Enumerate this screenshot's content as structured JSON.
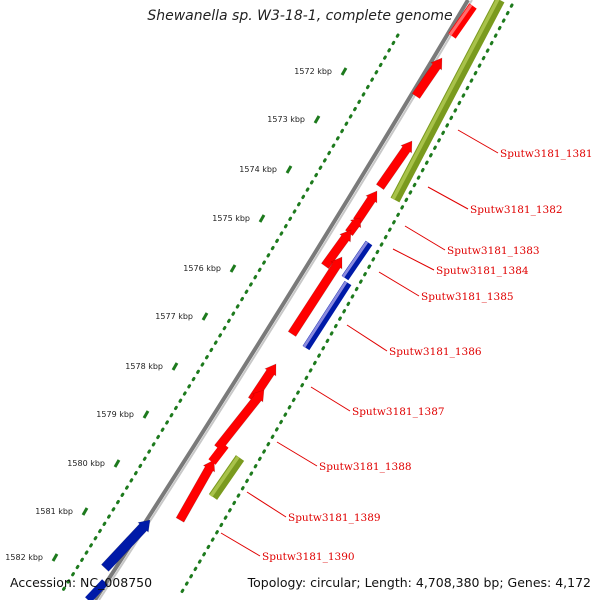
{
  "title": "Shewanella sp. W3-18-1, complete genome",
  "footer": {
    "accession": "Accession: NC_008750",
    "topology": "Topology: circular; Length: 4,708,380 bp; Genes: 4,172"
  },
  "colors": {
    "backbone": "#8c8c8c",
    "cds_forward": "#ff0000",
    "cds_reverse": "#ff0000",
    "rna": "#001aa8",
    "olive": "#7a9a1e",
    "scale_dots": "#1d7a1d",
    "label_text": "#e00000",
    "label_line": "#e00000"
  },
  "scale_ticks": [
    {
      "label": "1572 kbp"
    },
    {
      "label": "1573 kbp"
    },
    {
      "label": "1574 kbp"
    },
    {
      "label": "1575 kbp"
    },
    {
      "label": "1576 kbp"
    },
    {
      "label": "1577 kbp"
    },
    {
      "label": "1578 kbp"
    },
    {
      "label": "1579 kbp"
    },
    {
      "label": "1580 kbp"
    },
    {
      "label": "1581 kbp"
    },
    {
      "label": "1582 kbp"
    }
  ],
  "gene_labels": [
    "Sputw3181_1381",
    "Sputw3181_1382",
    "Sputw3181_1383",
    "Sputw3181_1384",
    "Sputw3181_1385",
    "Sputw3181_1386",
    "Sputw3181_1387",
    "Sputw3181_1388",
    "Sputw3181_1389",
    "Sputw3181_1390"
  ]
}
